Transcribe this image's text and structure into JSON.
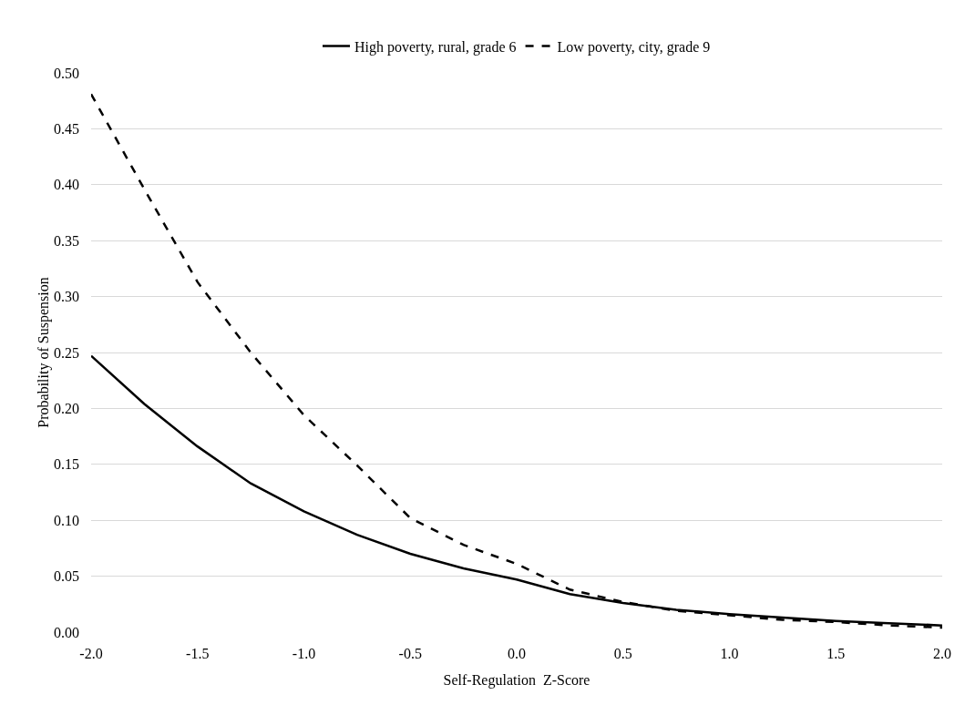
{
  "chart_data": {
    "type": "line",
    "xlabel": "Self-Regulation  Z-Score",
    "ylabel": "Probability of Suspension",
    "x": [
      -2,
      -1.75,
      -1.5,
      -1.25,
      -1,
      -0.75,
      -0.5,
      -0.25,
      0,
      0.25,
      0.5,
      0.75,
      1,
      1.25,
      1.5,
      1.75,
      2
    ],
    "series": [
      {
        "name": "High poverty, rural, grade 6",
        "color": "#000000",
        "line_style": "solid",
        "values": [
          0.247,
          0.204,
          0.166,
          0.133,
          0.108,
          0.087,
          0.07,
          0.057,
          0.047,
          0.034,
          0.026,
          0.02,
          0.016,
          0.013,
          0.01,
          0.008,
          0.006
        ]
      },
      {
        "name": "Low poverty, city, grade 9",
        "color": "#000000",
        "line_style": "dashed",
        "values": [
          0.481,
          0.396,
          0.313,
          0.25,
          0.194,
          0.149,
          0.102,
          0.078,
          0.061,
          0.038,
          0.027,
          0.019,
          0.015,
          0.011,
          0.009,
          0.006,
          0.004
        ]
      }
    ],
    "xlim": [
      -2,
      2
    ],
    "xticks": [
      {
        "value": -2,
        "label": "-2.0"
      },
      {
        "value": -1.5,
        "label": "-1.5"
      },
      {
        "value": -1,
        "label": "-1.0"
      },
      {
        "value": -0.5,
        "label": "-0.5"
      },
      {
        "value": 0,
        "label": "0.0"
      },
      {
        "value": 0.5,
        "label": "0.5"
      },
      {
        "value": 1,
        "label": "1.0"
      },
      {
        "value": 1.5,
        "label": "1.5"
      },
      {
        "value": 2,
        "label": "2.0"
      }
    ],
    "ylim": [
      0,
      0.5
    ],
    "yticks": [
      {
        "value": 0,
        "label": "0.00"
      },
      {
        "value": 0.05,
        "label": "0.05"
      },
      {
        "value": 0.1,
        "label": "0.10"
      },
      {
        "value": 0.15,
        "label": "0.15"
      },
      {
        "value": 0.2,
        "label": "0.20"
      },
      {
        "value": 0.25,
        "label": "0.25"
      },
      {
        "value": 0.3,
        "label": "0.30"
      },
      {
        "value": 0.35,
        "label": "0.35"
      },
      {
        "value": 0.4,
        "label": "0.40"
      },
      {
        "value": 0.45,
        "label": "0.45"
      },
      {
        "value": 0.5,
        "label": "0.50"
      }
    ],
    "grid": "y",
    "legend": "top",
    "marker": "none"
  }
}
